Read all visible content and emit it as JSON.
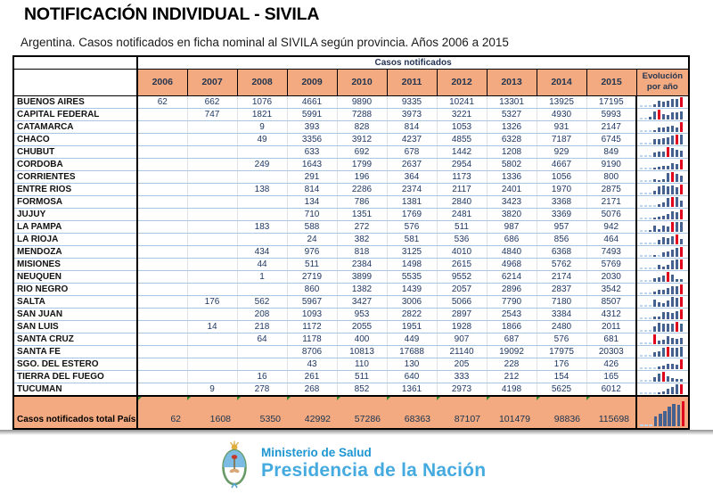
{
  "title": "NOTIFICACIÓN INDIVIDUAL - SIVILA",
  "subtitle": "Argentina. Casos notificados en ficha nominal al SIVILA según provincia. Años 2006 a 2015",
  "table": {
    "group_header": "Casos notificados",
    "years": [
      "2006",
      "2007",
      "2008",
      "2009",
      "2010",
      "2011",
      "2012",
      "2013",
      "2014",
      "2015"
    ],
    "evolution_header_line1": "Evolución",
    "evolution_header_line2": "por año",
    "rows": [
      {
        "province": "BUENOS AIRES",
        "values": [
          62,
          662,
          1076,
          4661,
          9890,
          9335,
          10241,
          13301,
          13925,
          17195
        ]
      },
      {
        "province": "CAPITAL FEDERAL",
        "values": [
          null,
          747,
          1821,
          5991,
          7288,
          3973,
          3221,
          5327,
          4930,
          5993
        ]
      },
      {
        "province": "CATAMARCA",
        "values": [
          null,
          null,
          9,
          393,
          828,
          814,
          1053,
          1326,
          931,
          2147
        ]
      },
      {
        "province": "CHACO",
        "values": [
          null,
          null,
          49,
          3356,
          3912,
          4237,
          4855,
          6328,
          7187,
          6745
        ]
      },
      {
        "province": "CHUBUT",
        "values": [
          null,
          null,
          null,
          633,
          692,
          678,
          1442,
          1208,
          929,
          849
        ]
      },
      {
        "province": "CORDOBA",
        "values": [
          null,
          null,
          249,
          1643,
          1799,
          2637,
          2954,
          5802,
          4667,
          9190
        ]
      },
      {
        "province": "CORRIENTES",
        "values": [
          null,
          null,
          null,
          291,
          196,
          364,
          1173,
          1336,
          1056,
          800
        ]
      },
      {
        "province": "ENTRE RIOS",
        "values": [
          null,
          null,
          138,
          814,
          2286,
          2374,
          2117,
          2401,
          1970,
          2875
        ]
      },
      {
        "province": "FORMOSA",
        "values": [
          null,
          null,
          null,
          134,
          786,
          1381,
          2840,
          3423,
          3368,
          2171
        ]
      },
      {
        "province": "JUJUY",
        "values": [
          null,
          null,
          null,
          710,
          1351,
          1769,
          2481,
          3820,
          3369,
          5076
        ]
      },
      {
        "province": "LA PAMPA",
        "values": [
          null,
          null,
          183,
          588,
          272,
          576,
          511,
          987,
          957,
          942
        ]
      },
      {
        "province": "LA RIOJA",
        "values": [
          null,
          null,
          null,
          24,
          382,
          581,
          536,
          686,
          856,
          464
        ]
      },
      {
        "province": "MENDOZA",
        "values": [
          null,
          null,
          434,
          976,
          818,
          3125,
          4010,
          4840,
          6368,
          7493
        ]
      },
      {
        "province": "MISIONES",
        "values": [
          null,
          null,
          44,
          511,
          2384,
          1498,
          2615,
          4968,
          5762,
          5769
        ]
      },
      {
        "province": "NEUQUEN",
        "values": [
          null,
          null,
          1,
          2719,
          3899,
          5535,
          9552,
          6214,
          2174,
          2030
        ]
      },
      {
        "province": "RIO NEGRO",
        "values": [
          null,
          null,
          null,
          860,
          1382,
          1439,
          2057,
          2896,
          2837,
          3542
        ]
      },
      {
        "province": "SALTA",
        "values": [
          null,
          176,
          562,
          5967,
          3427,
          3006,
          5066,
          7790,
          7180,
          8507
        ]
      },
      {
        "province": "SAN JUAN",
        "values": [
          null,
          null,
          208,
          1093,
          953,
          2822,
          2897,
          2543,
          3384,
          4312
        ]
      },
      {
        "province": "SAN LUIS",
        "values": [
          null,
          14,
          218,
          1172,
          2055,
          1951,
          1928,
          1866,
          2480,
          2011
        ]
      },
      {
        "province": "SANTA CRUZ",
        "values": [
          null,
          null,
          64,
          1178,
          400,
          449,
          907,
          687,
          576,
          681
        ]
      },
      {
        "province": "SANTA FE",
        "values": [
          null,
          null,
          null,
          8706,
          10813,
          17688,
          21140,
          19092,
          17975,
          20303
        ]
      },
      {
        "province": "SGO. DEL ESTERO",
        "values": [
          null,
          null,
          null,
          43,
          110,
          130,
          205,
          228,
          176,
          426
        ]
      },
      {
        "province": "TIERRA DEL FUEGO",
        "values": [
          null,
          null,
          16,
          261,
          511,
          640,
          333,
          212,
          154,
          165
        ]
      },
      {
        "province": "TUCUMAN",
        "values": [
          null,
          9,
          278,
          268,
          852,
          1361,
          2973,
          4198,
          5625,
          6012
        ]
      }
    ],
    "total": {
      "label": "Casos notificados total País",
      "values": [
        62,
        1608,
        5350,
        42992,
        57286,
        68363,
        87107,
        101479,
        98836,
        115698
      ]
    }
  },
  "footer": {
    "line1": "Ministerio de Salud",
    "line2": "Presidencia de la Nación"
  },
  "colors": {
    "header_fill": "#F3AA81",
    "spark_bar": "#44618F",
    "spark_max": "#E0001B",
    "spark_empty": "#BCD4EC",
    "grid_horizontal": "#A9C6E3",
    "footer_blue_bold": "#1E96D2",
    "footer_blue_light": "#45AADF",
    "comment_triangle": "#2F8E2F"
  }
}
